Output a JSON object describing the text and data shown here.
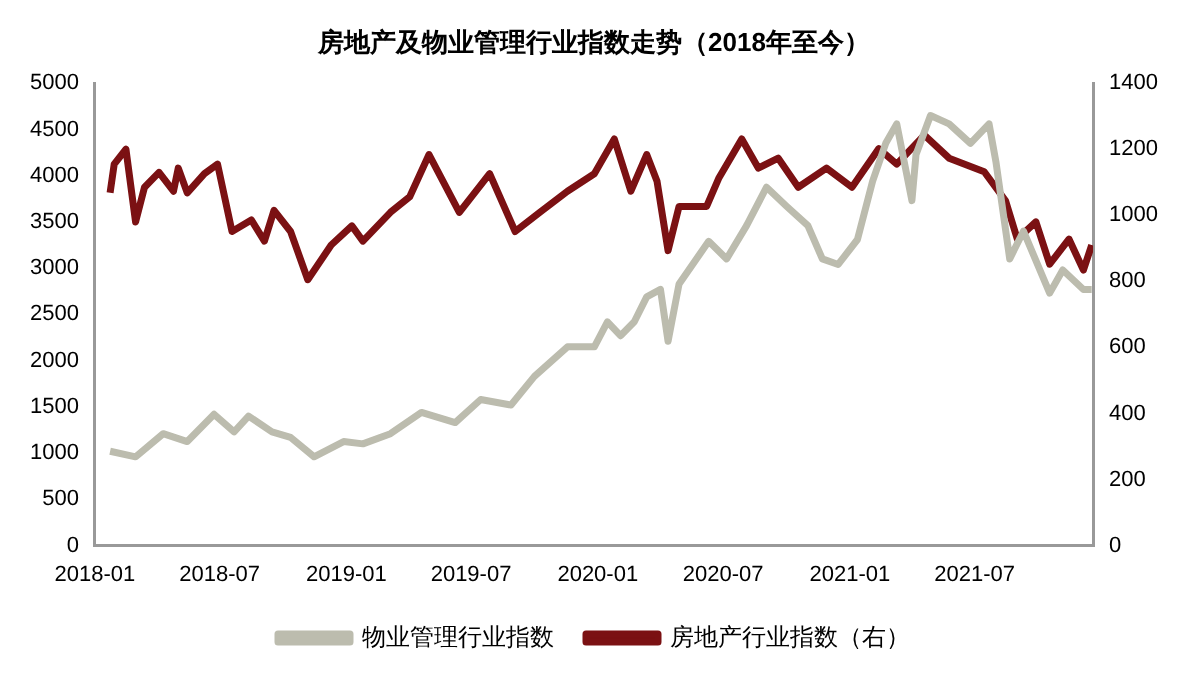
{
  "chart_data": {
    "type": "line",
    "title": "房地产及物业管理行业指数走势（2018年至今）",
    "xlim": [
      "2018-01-01",
      "2021-12-20"
    ],
    "xticks": [
      "2018-01",
      "2018-07",
      "2019-01",
      "2019-07",
      "2020-01",
      "2020-07",
      "2021-01",
      "2021-07"
    ],
    "ylim": [
      0,
      5000
    ],
    "yticks": [
      0,
      500,
      1000,
      1500,
      2000,
      2500,
      3000,
      3500,
      4000,
      4500,
      5000
    ],
    "y2lim": [
      0,
      1400
    ],
    "y2ticks": [
      0,
      200,
      400,
      600,
      800,
      1000,
      1200,
      1400
    ],
    "grid": false,
    "legend": "bottom",
    "marker": "none",
    "line_style": "solid",
    "series": [
      {
        "name": "物业管理行业指数",
        "color": "#bcbcae",
        "x": [
          "2018-01-23",
          "2018-03-01",
          "2018-04-10",
          "2018-05-15",
          "2018-06-23",
          "2018-07-22",
          "2018-08-12",
          "2018-09-15",
          "2018-10-12",
          "2018-11-15",
          "2018-12-28",
          "2019-01-25",
          "2019-03-06",
          "2019-04-20",
          "2019-06-08",
          "2019-07-15",
          "2019-08-28",
          "2019-10-01",
          "2019-11-18",
          "2019-12-27",
          "2020-01-15",
          "2020-02-03",
          "2020-02-23",
          "2020-03-12",
          "2020-04-01",
          "2020-04-12",
          "2020-04-28",
          "2020-06-10",
          "2020-07-06",
          "2020-08-04",
          "2020-09-02",
          "2020-10-01",
          "2020-11-01",
          "2020-11-22",
          "2020-12-15",
          "2021-01-12",
          "2021-02-03",
          "2021-02-22",
          "2021-03-10",
          "2021-04-01",
          "2021-04-07",
          "2021-04-28",
          "2021-05-25",
          "2021-06-25",
          "2021-07-22",
          "2021-08-01",
          "2021-08-21",
          "2021-09-10",
          "2021-10-18",
          "2021-11-06",
          "2021-12-06",
          "2021-12-18"
        ],
        "values": [
          1020,
          960,
          1210,
          1125,
          1420,
          1230,
          1400,
          1230,
          1170,
          960,
          1125,
          1100,
          1210,
          1440,
          1330,
          1580,
          1520,
          1830,
          2150,
          2150,
          2420,
          2270,
          2420,
          2690,
          2770,
          2210,
          2830,
          3290,
          3100,
          3460,
          3875,
          3670,
          3460,
          3100,
          3040,
          3310,
          3940,
          4350,
          4560,
          3730,
          4230,
          4650,
          4560,
          4350,
          4560,
          4150,
          3100,
          3400,
          2730,
          2980,
          2770,
          2770
        ]
      },
      {
        "name": "房地产行业指数（右）",
        "color": "#7b1113",
        "axis": "y2",
        "x": [
          "2018-01-23",
          "2018-01-29",
          "2018-02-15",
          "2018-03-01",
          "2018-03-14",
          "2018-04-04",
          "2018-04-25",
          "2018-05-02",
          "2018-05-15",
          "2018-06-09",
          "2018-06-28",
          "2018-07-19",
          "2018-08-16",
          "2018-09-04",
          "2018-09-18",
          "2018-10-12",
          "2018-11-06",
          "2018-12-10",
          "2019-01-09",
          "2019-01-25",
          "2019-03-06",
          "2019-04-03",
          "2019-05-01",
          "2019-06-14",
          "2019-07-28",
          "2019-09-03",
          "2019-10-09",
          "2019-11-18",
          "2019-12-27",
          "2020-01-25",
          "2020-02-18",
          "2020-03-12",
          "2020-03-27",
          "2020-04-12",
          "2020-04-28",
          "2020-06-07",
          "2020-06-25",
          "2020-07-28",
          "2020-08-21",
          "2020-09-19",
          "2020-10-18",
          "2020-11-28",
          "2021-01-04",
          "2021-02-12",
          "2021-03-10",
          "2021-04-19",
          "2021-05-25",
          "2021-07-15",
          "2021-08-15",
          "2021-09-01",
          "2021-09-28",
          "2021-10-18",
          "2021-11-15",
          "2021-12-06",
          "2021-12-18"
        ],
        "values": [
          1068,
          1155,
          1200,
          980,
          1085,
          1130,
          1073,
          1143,
          1068,
          1126,
          1155,
          951,
          986,
          922,
          1015,
          951,
          805,
          910,
          968,
          922,
          1009,
          1056,
          1184,
          1009,
          1126,
          951,
          1009,
          1073,
          1126,
          1231,
          1073,
          1184,
          1103,
          893,
          1027,
          1027,
          1114,
          1231,
          1143,
          1173,
          1085,
          1143,
          1085,
          1202,
          1155,
          1243,
          1173,
          1132,
          1044,
          928,
          980,
          852,
          928,
          834,
          910
        ]
      }
    ]
  }
}
